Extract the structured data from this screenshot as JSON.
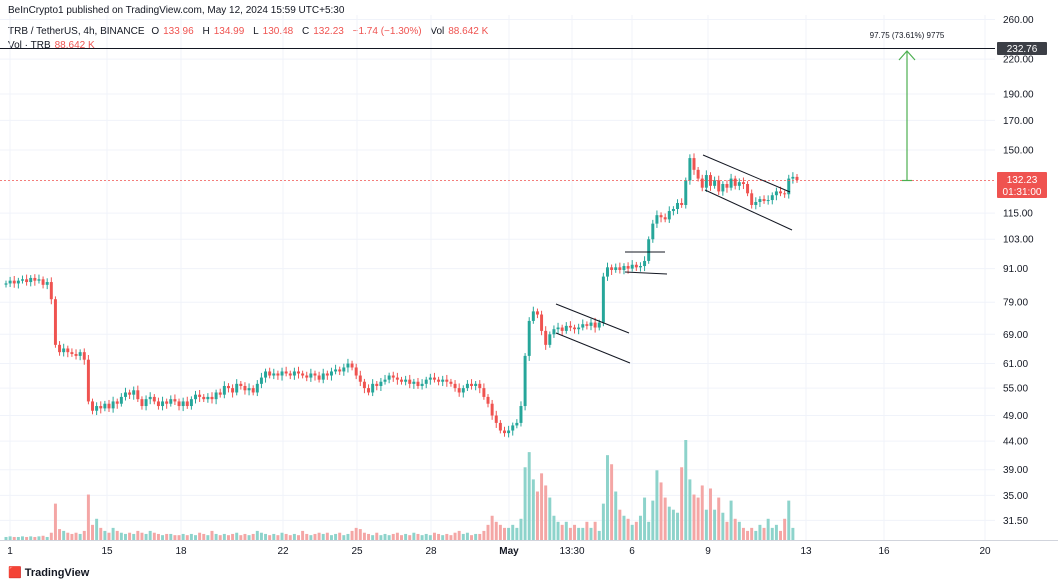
{
  "header": {
    "published": "BeInCrypto1 published on TradingView.com, May 12, 2024 15:59 UTC+5:30",
    "symbol": "TRB / TetherUS, 4h, BINANCE",
    "open_label": "O",
    "open": "133.96",
    "high_label": "H",
    "high": "134.99",
    "low_label": "L",
    "low": "130.48",
    "close_label": "C",
    "close": "132.23",
    "change": "−1.74 (−1.30%)",
    "vol_label": "Vol",
    "vol": "88.642 K",
    "vol_series_label": "Vol · TRB",
    "vol_series_value": "88.642 K"
  },
  "footer": {
    "logo_text": "TradingView"
  },
  "colors": {
    "up": "#26a69a",
    "down": "#ef5350",
    "vol_up": "#8dd3cb",
    "vol_down": "#f4a6a5",
    "target_arrow": "#4caf50",
    "grid": "#f0f3fa"
  },
  "chart_data": {
    "type": "candlestick",
    "y_scale": "log",
    "ylim": [
      29,
      265
    ],
    "y_ticks": [
      260,
      220,
      190,
      170,
      150,
      115,
      103,
      91,
      79,
      69,
      61,
      55,
      49,
      44,
      39,
      35,
      31.5
    ],
    "y_tick_labels": [
      "260.00",
      "220.00",
      "190.00",
      "170.00",
      "150.00",
      "115.00",
      "103.00",
      "91.00",
      "79.00",
      "69.00",
      "61.00",
      "55.00",
      "49.00",
      "44.00",
      "39.00",
      "35.00",
      "31.50"
    ],
    "x_ticks": [
      "1",
      "15",
      "18",
      "22",
      "25",
      "28",
      "May",
      "13:30",
      "6",
      "9",
      "13",
      "16",
      "20"
    ],
    "target": {
      "price": 232.76,
      "label": "232.76",
      "measure": "97.75 (73.61%) 9775"
    },
    "current": {
      "price": 132.23,
      "label": "132.23",
      "countdown": "01:31:00"
    },
    "closes": [
      85.5,
      86.5,
      85.5,
      86.5,
      87.0,
      86.0,
      87.5,
      86.5,
      87.0,
      85.0,
      86.0,
      80.0,
      66.0,
      64.0,
      65.0,
      64.0,
      63.5,
      63.0,
      64.0,
      62.0,
      52.0,
      50.0,
      51.0,
      50.5,
      51.5,
      50.5,
      52.0,
      51.5,
      53.0,
      54.0,
      53.5,
      54.5,
      52.5,
      51.0,
      52.5,
      53.0,
      52.0,
      51.0,
      52.0,
      51.5,
      52.5,
      52.0,
      51.0,
      52.0,
      51.0,
      52.5,
      53.5,
      53.0,
      52.5,
      53.0,
      52.5,
      54.0,
      53.5,
      55.5,
      55.0,
      54.0,
      56.0,
      55.5,
      54.5,
      55.0,
      54.0,
      56.0,
      57.5,
      59.0,
      58.0,
      58.5,
      58.0,
      59.0,
      58.5,
      58.0,
      59.0,
      58.5,
      58.0,
      57.5,
      58.5,
      58.0,
      57.0,
      58.5,
      58.0,
      59.0,
      59.5,
      59.0,
      60.0,
      61.0,
      60.0,
      58.0,
      56.5,
      55.0,
      54.0,
      56.0,
      55.5,
      56.5,
      57.0,
      58.0,
      57.5,
      57.0,
      56.5,
      57.0,
      56.0,
      56.5,
      55.5,
      56.0,
      57.0,
      57.5,
      57.0,
      56.5,
      57.0,
      56.5,
      56.0,
      55.0,
      54.0,
      55.0,
      56.0,
      55.5,
      56.0,
      55.0,
      53.0,
      51.5,
      49.0,
      47.5,
      46.0,
      45.5,
      46.0,
      47.0,
      47.5,
      51.0,
      63.0,
      73.0,
      76.0,
      75.0,
      70.0,
      66.0,
      69.0,
      70.5,
      71.0,
      70.0,
      71.5,
      71.0,
      70.5,
      71.0,
      72.0,
      71.5,
      72.5,
      71.0,
      72.5,
      88.0,
      91.5,
      90.5,
      91.5,
      90.5,
      92.0,
      91.0,
      92.5,
      91.5,
      92.0,
      94.0,
      103.0,
      110.0,
      114.0,
      113.0,
      112.0,
      116.0,
      117.0,
      120.0,
      119.0,
      132.0,
      145.0,
      138.0,
      133.0,
      128.0,
      135.0,
      129.0,
      132.0,
      126.0,
      130.0,
      128.0,
      133.0,
      129.0,
      131.0,
      130.0,
      125.0,
      119.0,
      120.5,
      122.0,
      121.0,
      121.5,
      124.0,
      126.0,
      125.0,
      124.5,
      133.0,
      133.96,
      132.23
    ],
    "volumes": [
      0.5,
      0.6,
      0.5,
      0.5,
      0.6,
      0.5,
      0.6,
      0.5,
      0.6,
      0.7,
      0.5,
      1.2,
      6.0,
      1.8,
      1.5,
      1.2,
      1.0,
      1.2,
      1.0,
      1.5,
      7.5,
      2.5,
      3.5,
      2.0,
      1.5,
      1.2,
      2.0,
      1.5,
      1.2,
      1.0,
      1.2,
      1.0,
      1.5,
      1.2,
      1.0,
      1.5,
      1.2,
      1.0,
      0.8,
      1.0,
      1.0,
      0.8,
      0.8,
      1.0,
      0.8,
      1.0,
      0.8,
      1.2,
      1.0,
      0.8,
      1.5,
      1.0,
      0.8,
      1.0,
      0.8,
      1.0,
      1.2,
      0.8,
      1.0,
      0.8,
      1.0,
      1.5,
      1.2,
      1.0,
      0.8,
      1.0,
      0.8,
      1.2,
      1.0,
      0.8,
      1.0,
      0.8,
      1.5,
      1.0,
      0.8,
      1.0,
      1.2,
      1.0,
      1.2,
      0.8,
      1.0,
      1.2,
      0.8,
      1.0,
      1.5,
      2.0,
      1.8,
      1.2,
      1.0,
      0.8,
      1.2,
      0.8,
      1.0,
      0.8,
      1.0,
      1.2,
      0.8,
      1.0,
      0.8,
      1.2,
      1.0,
      0.8,
      1.0,
      0.8,
      1.2,
      1.0,
      0.8,
      1.0,
      0.8,
      1.2,
      1.5,
      1.0,
      1.2,
      0.8,
      1.0,
      1.0,
      1.5,
      2.5,
      4.0,
      3.0,
      2.5,
      2.0,
      2.0,
      2.5,
      2.0,
      3.5,
      12.0,
      14.5,
      10.0,
      8.0,
      11.0,
      9.0,
      7.0,
      4.0,
      3.0,
      2.5,
      3.0,
      2.0,
      2.5,
      2.0,
      2.0,
      3.0,
      2.0,
      3.0,
      1.5,
      6.0,
      14.0,
      12.5,
      8.0,
      5.0,
      4.0,
      3.5,
      2.5,
      3.0,
      4.0,
      7.0,
      3.0,
      6.5,
      11.5,
      9.5,
      7.0,
      5.5,
      5.0,
      4.5,
      12.0,
      16.5,
      10.0,
      7.5,
      7.0,
      9.0,
      5.0,
      8.5,
      5.0,
      7.0,
      4.5,
      3.0,
      6.5,
      3.5,
      3.0,
      2.0,
      1.5,
      2.0,
      1.5,
      2.5,
      2.0,
      3.5,
      2.0,
      2.5,
      1.5,
      3.5,
      6.5,
      2.0
    ]
  }
}
